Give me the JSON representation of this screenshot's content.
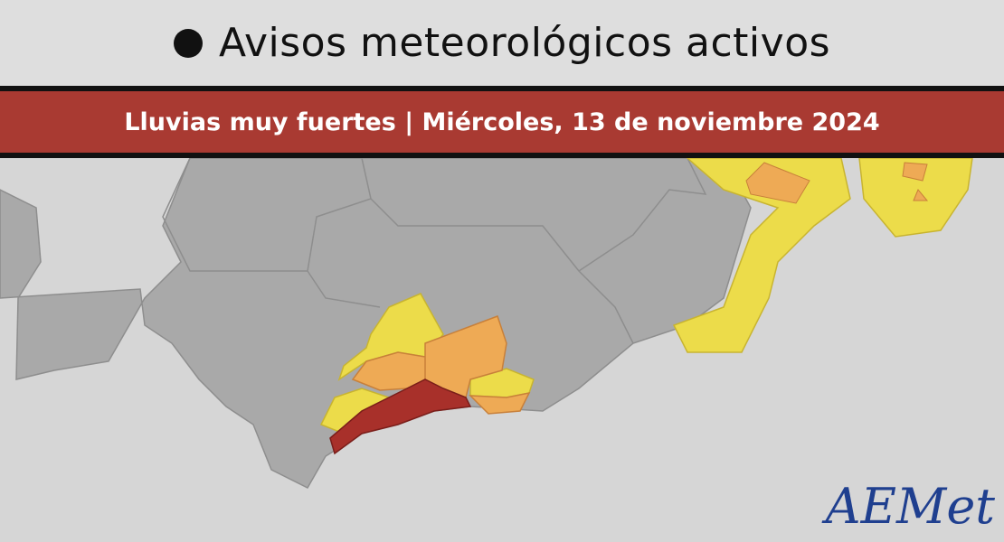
{
  "header": {
    "title": "Avisos meteorológicos activos"
  },
  "banner": {
    "text": "Lluvias muy fuertes | Miércoles, 13 de noviembre 2024"
  },
  "logo": {
    "text": "AEMet"
  }
}
